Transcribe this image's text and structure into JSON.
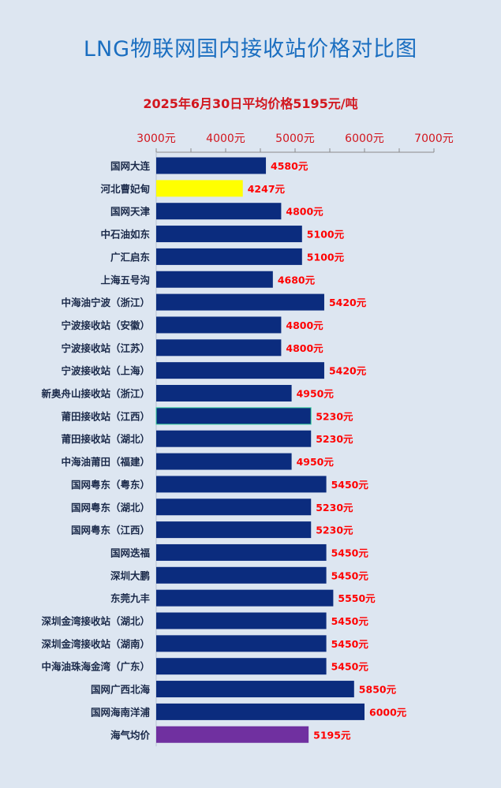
{
  "chart_data": {
    "type": "bar",
    "orientation": "horizontal",
    "title": "LNG物联网国内接收站价格对比图",
    "subtitle": "2025年6月30日平均价格5195元/吨",
    "xlim": [
      3000,
      7000
    ],
    "xticks": [
      "3000元",
      "4000元",
      "5000元",
      "6000元",
      "7000元"
    ],
    "tick_values": [
      3000,
      4000,
      5000,
      6000,
      7000
    ],
    "axis_position": "top",
    "grid": false,
    "value_label_suffix": "元",
    "colors": {
      "default": "#0b2c7e",
      "highlight": "#ffff00",
      "average": "#7030a0",
      "value_label": "#ff0000",
      "tick_label": "#d2161e",
      "category_label": "#1b2a4a"
    },
    "categories": [
      "国网大连",
      "河北曹妃甸",
      "国网天津",
      "中石油如东",
      "广汇启东",
      "上海五号沟",
      "中海油宁波（浙江）",
      "宁波接收站（安徽）",
      "宁波接收站（江苏）",
      "宁波接收站（上海）",
      "新奥舟山接收站（浙江）",
      "莆田接收站（江西）",
      "莆田接收站（湖北）",
      "中海油莆田（福建）",
      "国网粤东（粤东）",
      "国网粤东（湖北）",
      "国网粤东（江西）",
      "国网迭福",
      "深圳大鹏",
      "东莞九丰",
      "深圳金湾接收站（湖北）",
      "深圳金湾接收站（湖南）",
      "中海油珠海金湾（广东）",
      "国网广西北海",
      "国网海南洋浦",
      "海气均价"
    ],
    "values": [
      4580,
      4247,
      4800,
      5100,
      5100,
      4680,
      5420,
      4800,
      4800,
      5420,
      4950,
      5230,
      5230,
      4950,
      5450,
      5230,
      5230,
      5450,
      5450,
      5550,
      5450,
      5450,
      5450,
      5850,
      6000,
      5195
    ],
    "value_labels": [
      "4580元",
      "4247元",
      "4800元",
      "5100元",
      "5100元",
      "4680元",
      "5420元",
      "4800元",
      "4800元",
      "5420元",
      "4950元",
      "5230元",
      "5230元",
      "4950元",
      "5450元",
      "5230元",
      "5230元",
      "5450元",
      "5450元",
      "5550元",
      "5450元",
      "5450元",
      "5450元",
      "5850元",
      "6000元",
      "5195元"
    ],
    "bar_colors": [
      "default",
      "highlight",
      "default",
      "default",
      "default",
      "default",
      "default",
      "default",
      "default",
      "default",
      "default",
      "default",
      "default",
      "default",
      "default",
      "default",
      "default",
      "default",
      "default",
      "default",
      "default",
      "default",
      "default",
      "default",
      "default",
      "average"
    ]
  }
}
